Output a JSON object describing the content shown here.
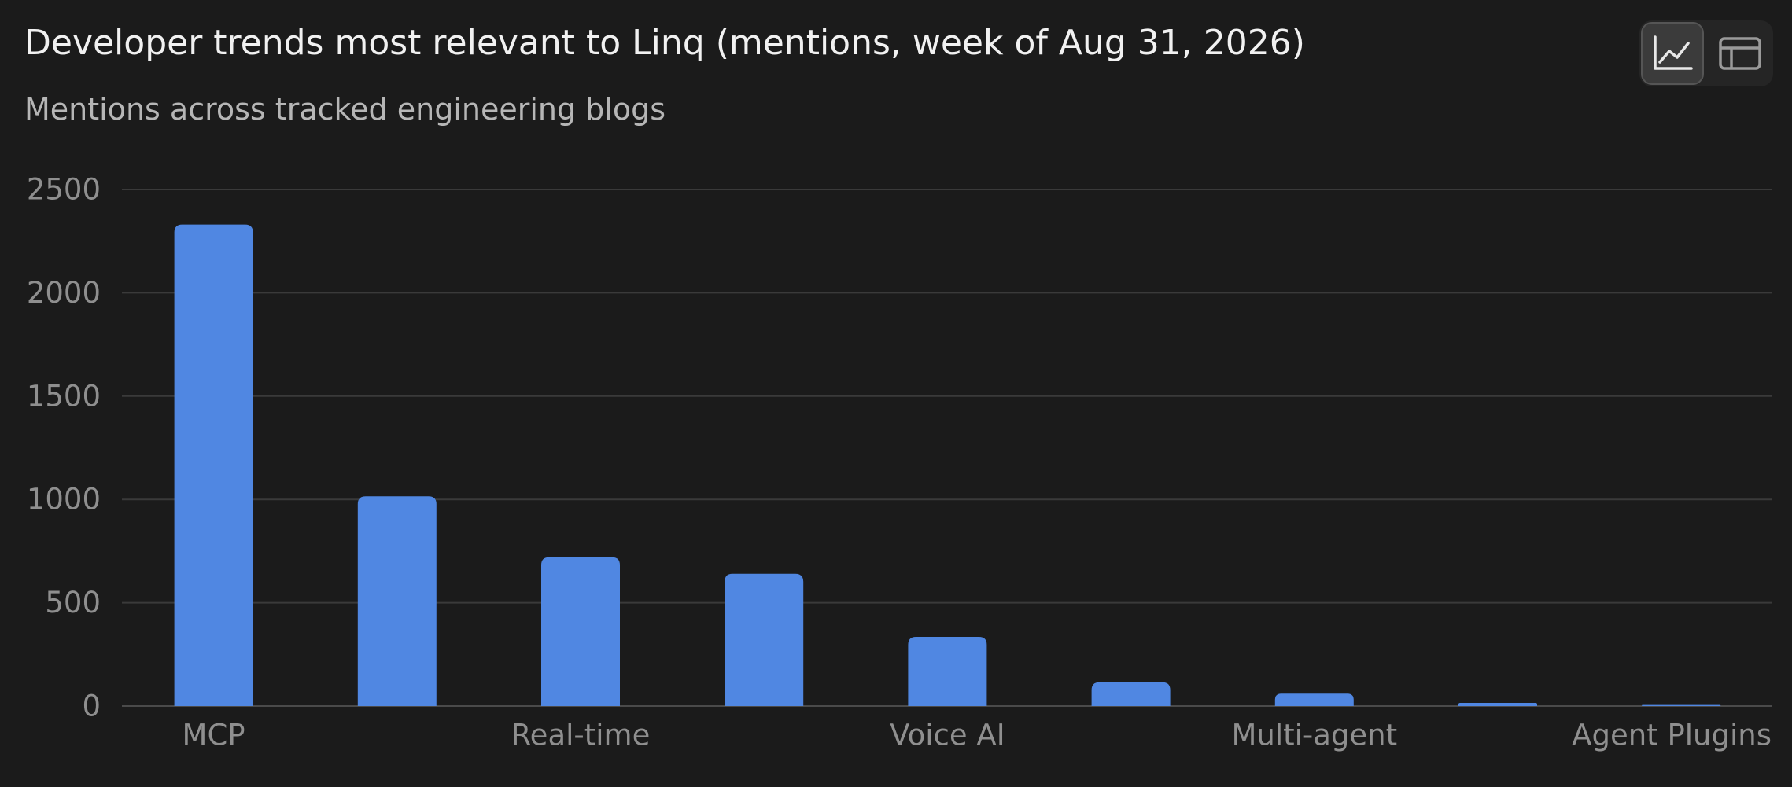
{
  "header": {
    "title": "Developer trends most relevant to Linq (mentions, week of Aug 31, 2026)",
    "subtitle": "Mentions across tracked engineering blogs"
  },
  "view_toggle": {
    "options": [
      {
        "name": "chart-view",
        "icon": "line-chart-icon",
        "active": true
      },
      {
        "name": "table-view",
        "icon": "table-icon",
        "active": false
      }
    ]
  },
  "colors": {
    "background": "#1b1b1b",
    "bar": "#5087e2",
    "grid": "#3a3a3a",
    "tick_text": "#8f8f8f"
  },
  "chart_data": {
    "type": "bar",
    "title": "Developer trends most relevant to Linq (mentions, week of Aug 31, 2026)",
    "subtitle": "Mentions across tracked engineering blogs",
    "categories": [
      "MCP",
      "",
      "Real-time",
      "",
      "Voice AI",
      "",
      "Multi-agent",
      "",
      "Agent Plugins"
    ],
    "values": [
      2330,
      1015,
      720,
      640,
      335,
      115,
      60,
      15,
      5
    ],
    "ylim": [
      0,
      2500
    ],
    "yticks": [
      0,
      500,
      1000,
      1500,
      2000,
      2500
    ],
    "xlabel": "",
    "ylabel": "",
    "grid": true,
    "legend": "none"
  }
}
